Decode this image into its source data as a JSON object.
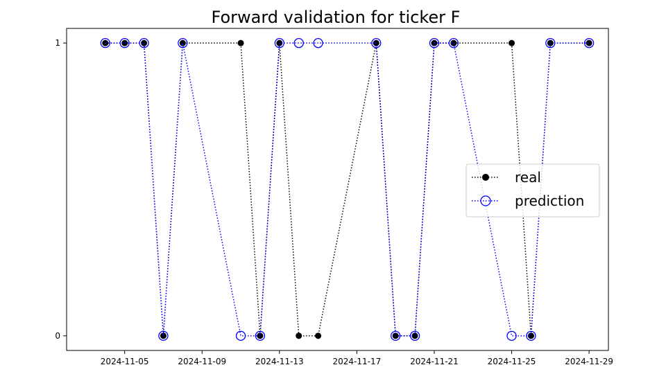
{
  "chart_data": {
    "type": "line",
    "title": "Forward validation for ticker F",
    "xlabel": "",
    "ylabel": "",
    "grid": false,
    "legend_position": "center-right",
    "x_axis": {
      "type": "date",
      "range": [
        "2024-11-02",
        "2024-11-30"
      ],
      "tick_labels": [
        "2024-11-05",
        "2024-11-09",
        "2024-11-13",
        "2024-11-17",
        "2024-11-21",
        "2024-11-25",
        "2024-11-29"
      ]
    },
    "y_axis": {
      "range": [
        -0.05,
        1.05
      ],
      "tick_values": [
        0,
        1
      ],
      "tick_labels": [
        "0",
        "1"
      ]
    },
    "series": [
      {
        "name": "real",
        "color": "#000000",
        "line_style": "dotted",
        "marker": "filled-circle",
        "x": [
          "2024-11-04",
          "2024-11-05",
          "2024-11-06",
          "2024-11-07",
          "2024-11-08",
          "2024-11-11",
          "2024-11-12",
          "2024-11-13",
          "2024-11-14",
          "2024-11-15",
          "2024-11-18",
          "2024-11-19",
          "2024-11-20",
          "2024-11-21",
          "2024-11-22",
          "2024-11-25",
          "2024-11-26",
          "2024-11-27",
          "2024-11-29"
        ],
        "y": [
          1,
          1,
          1,
          0,
          1,
          1,
          0,
          1,
          0,
          0,
          1,
          0,
          0,
          1,
          1,
          1,
          0,
          1,
          1
        ]
      },
      {
        "name": "prediction",
        "color": "#0000ff",
        "line_style": "dotted",
        "marker": "hollow-circle",
        "x": [
          "2024-11-04",
          "2024-11-05",
          "2024-11-06",
          "2024-11-07",
          "2024-11-08",
          "2024-11-11",
          "2024-11-12",
          "2024-11-13",
          "2024-11-14",
          "2024-11-15",
          "2024-11-18",
          "2024-11-19",
          "2024-11-20",
          "2024-11-21",
          "2024-11-22",
          "2024-11-25",
          "2024-11-26",
          "2024-11-27",
          "2024-11-29"
        ],
        "y": [
          1,
          1,
          1,
          0,
          1,
          0,
          0,
          1,
          1,
          1,
          1,
          0,
          0,
          1,
          1,
          0,
          0,
          1,
          1
        ]
      }
    ]
  }
}
